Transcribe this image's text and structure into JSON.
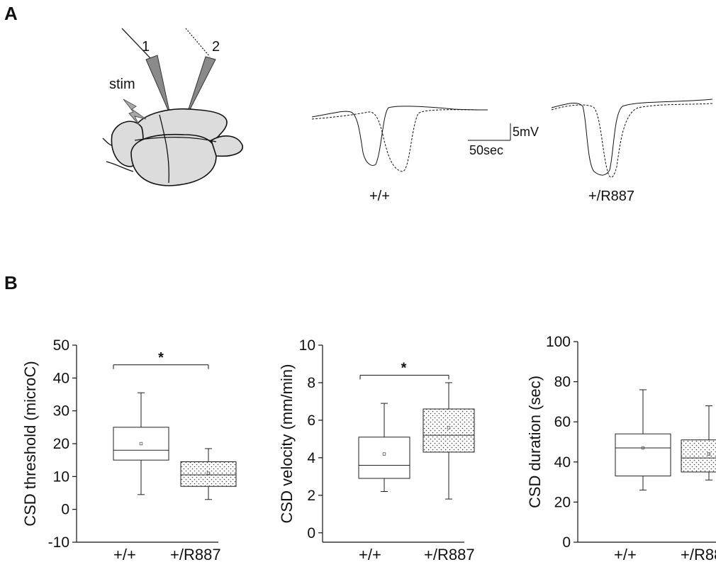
{
  "panels": {
    "a": "A",
    "b": "B"
  },
  "schematic": {
    "electrode1_label": "1",
    "electrode2_label": "2",
    "stim_label": "stim"
  },
  "traces": {
    "wt_label": "+/+",
    "mut_label": "+/R887",
    "scale_v": "5mV",
    "scale_t": "50sec"
  },
  "chart_data": [
    {
      "type": "box",
      "title": "",
      "ylabel": "CSD threshold (microC)",
      "xlabel": "",
      "ylim": [
        -10,
        50
      ],
      "yticks": [
        -10,
        0,
        10,
        20,
        30,
        40,
        50
      ],
      "categories": [
        "+/+",
        "+/R887"
      ],
      "boxes": [
        {
          "name": "+/+",
          "min": 4.5,
          "q1": 15,
          "median": 18,
          "q3": 25,
          "max": 35.5,
          "mean": 20,
          "fill": "plain"
        },
        {
          "name": "+/R887",
          "min": 3,
          "q1": 7,
          "median": 10.5,
          "q3": 14.5,
          "max": 18.5,
          "mean": 11,
          "fill": "dotted"
        }
      ],
      "significance": {
        "label": "*",
        "y": 44
      }
    },
    {
      "type": "box",
      "title": "",
      "ylabel": "CSD velocity (mm/min)",
      "xlabel": "",
      "ylim": [
        -0.5,
        10
      ],
      "yticks": [
        0,
        2,
        4,
        6,
        8,
        10
      ],
      "categories": [
        "+/+",
        "+/R887"
      ],
      "boxes": [
        {
          "name": "+/+",
          "min": 2.2,
          "q1": 2.9,
          "median": 3.6,
          "q3": 5.1,
          "max": 6.9,
          "mean": 4.2,
          "fill": "plain"
        },
        {
          "name": "+/R887",
          "min": 1.8,
          "q1": 4.3,
          "median": 5.2,
          "q3": 6.6,
          "max": 8.0,
          "mean": 5.6,
          "fill": "dotted"
        }
      ],
      "significance": {
        "label": "*",
        "y": 8.4
      }
    },
    {
      "type": "box",
      "title": "",
      "ylabel": "CSD duration (sec)",
      "xlabel": "",
      "ylim": [
        0,
        100
      ],
      "yticks": [
        0,
        20,
        40,
        60,
        80,
        100
      ],
      "categories": [
        "+/+",
        "+/R887"
      ],
      "boxes": [
        {
          "name": "+/+",
          "min": 26,
          "q1": 33,
          "median": 47,
          "q3": 54,
          "max": 76,
          "mean": 47,
          "fill": "plain"
        },
        {
          "name": "+/R887",
          "min": 31,
          "q1": 35,
          "median": 42,
          "q3": 51,
          "max": 68,
          "mean": 44,
          "fill": "dotted"
        }
      ],
      "significance": null
    }
  ]
}
